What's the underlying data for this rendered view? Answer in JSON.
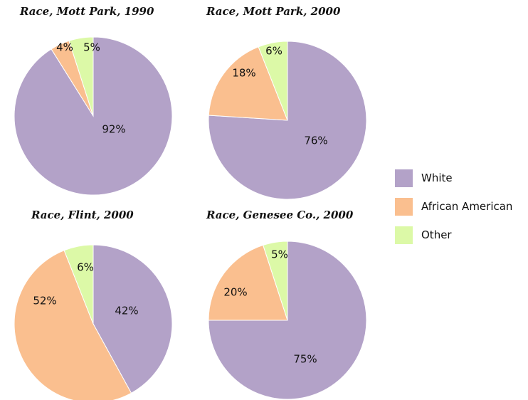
{
  "chart_data": [
    {
      "type": "pie",
      "title": "Race, Mott Park, 1990",
      "categories": [
        "White",
        "African American",
        "Other"
      ],
      "values": [
        92,
        4,
        5
      ],
      "labels": [
        "92%",
        "4%",
        "5%"
      ]
    },
    {
      "type": "pie",
      "title": "Race, Mott Park, 2000",
      "categories": [
        "White",
        "African American",
        "Other"
      ],
      "values": [
        76,
        18,
        6
      ],
      "labels": [
        "76%",
        "18%",
        "6%"
      ]
    },
    {
      "type": "pie",
      "title": "Race, Flint, 2000",
      "categories": [
        "White",
        "African American",
        "Other"
      ],
      "values": [
        42,
        52,
        6
      ],
      "labels": [
        "42%",
        "52%",
        "6%"
      ]
    },
    {
      "type": "pie",
      "title": "Race, Genesee Co., 2000",
      "categories": [
        "White",
        "African American",
        "Other"
      ],
      "values": [
        75,
        20,
        5
      ],
      "labels": [
        "75%",
        "20%",
        "5%"
      ]
    }
  ],
  "legend": [
    {
      "label": "White",
      "color": "#b3a2c8"
    },
    {
      "label": "African American",
      "color": "#fabf8f"
    },
    {
      "label": "Other",
      "color": "#dcf9a7"
    }
  ]
}
